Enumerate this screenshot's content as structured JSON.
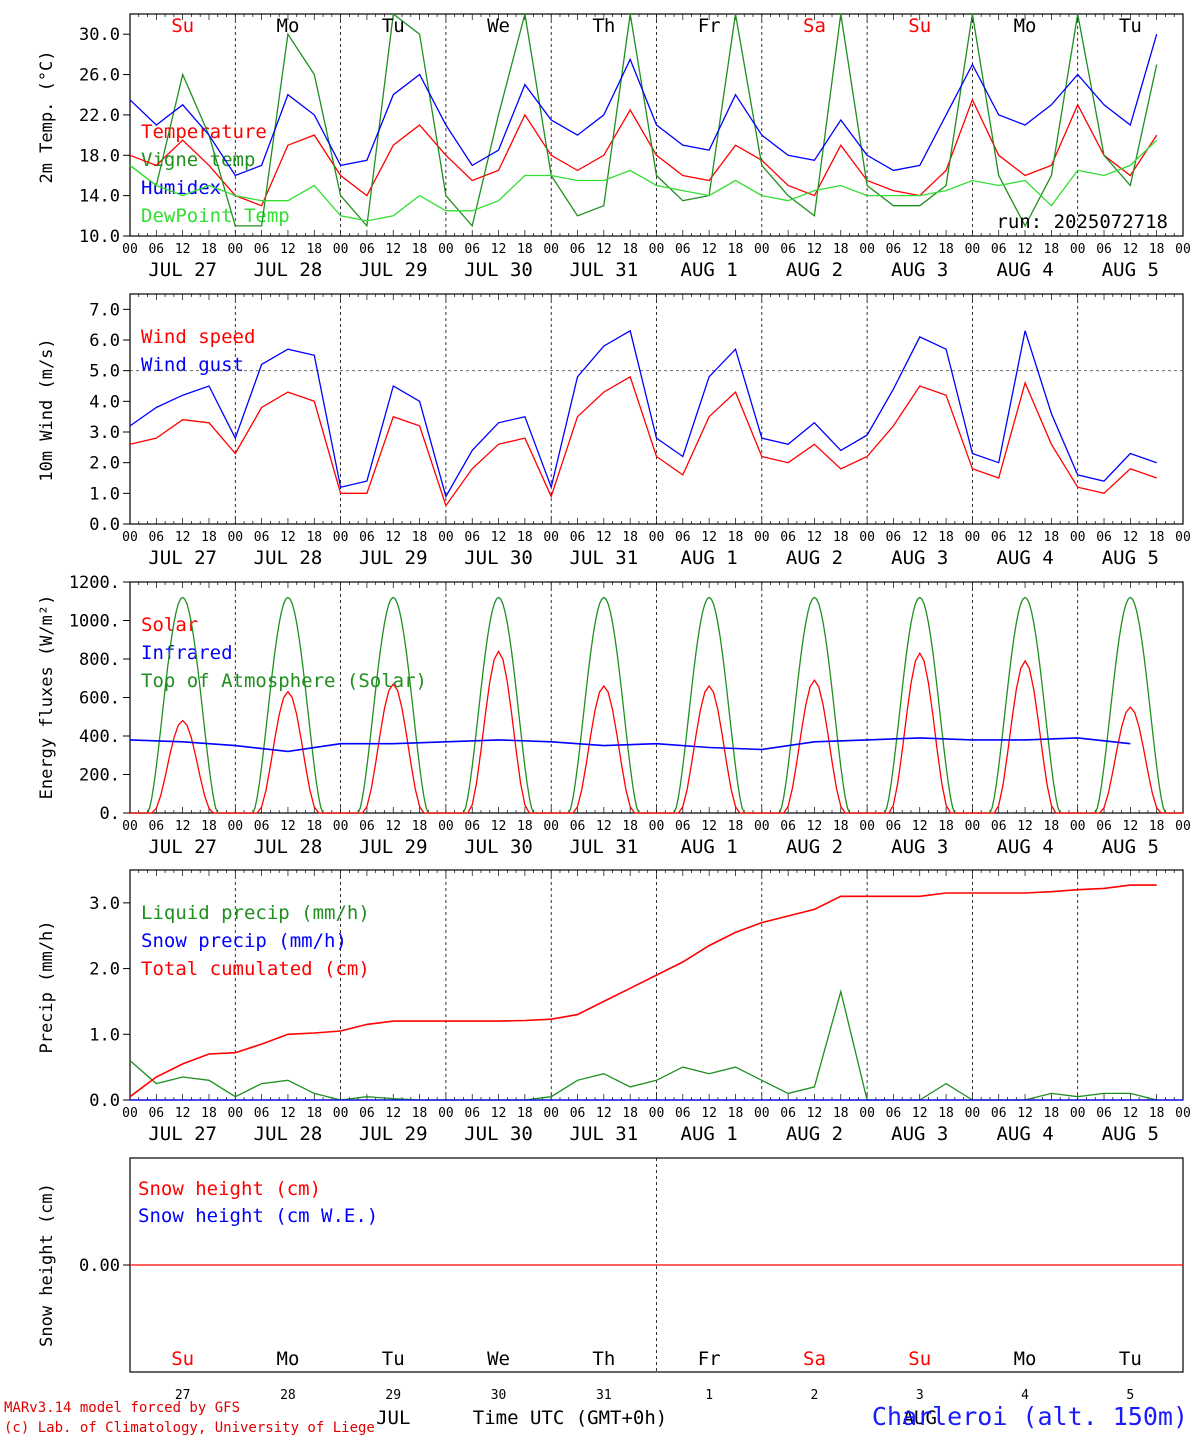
{
  "colors": {
    "red": "#ff0000",
    "darkgreen": "#1f8f1f",
    "blue": "#0000ff",
    "lightgreen": "#33dd33",
    "weekend": "#ff0000",
    "weekday": "#000000"
  },
  "days": [
    "JUL 27",
    "JUL 28",
    "JUL 29",
    "JUL 30",
    "JUL 31",
    "AUG  1",
    "AUG  2",
    "AUG  3",
    "AUG  4",
    "AUG  5"
  ],
  "weekdays": [
    "Su",
    "Mo",
    "Tu",
    "We",
    "Th",
    "Fr",
    "Sa",
    "Su",
    "Mo",
    "Tu"
  ],
  "weekend_flags": [
    true,
    false,
    false,
    false,
    false,
    false,
    true,
    true,
    false,
    false
  ],
  "hour_labels": [
    "00",
    "06",
    "12",
    "18"
  ],
  "run_label": "run: 2025072718",
  "bottom": {
    "day_numbers": [
      "27",
      "28",
      "29",
      "30",
      "31",
      "1",
      "2",
      "3",
      "4",
      "5"
    ],
    "month_jul": "JUL",
    "month_aug": "AUG",
    "axis_title": "Time UTC (GMT+0h)"
  },
  "credits": {
    "line1": "MARv3.14 model forced by GFS",
    "line2": "(c) Lab. of Climatology, University of Liege"
  },
  "station": "Charleroi (alt. 150m)",
  "chart_data": [
    {
      "type": "line",
      "ylabel": "2m Temp. (°C)",
      "ylim": [
        10,
        32
      ],
      "yticks": [
        "10.0",
        "14.0",
        "18.0",
        "22.0",
        "26.0",
        "30.0"
      ],
      "x_hours": [
        0,
        6,
        12,
        18,
        24,
        30,
        36,
        42,
        48,
        54,
        60,
        66,
        72,
        78,
        84,
        90,
        96,
        102,
        108,
        114,
        120,
        126,
        132,
        138,
        144,
        150,
        156,
        162,
        168,
        174,
        180,
        186,
        192,
        198,
        204,
        210,
        216,
        222,
        228,
        234
      ],
      "series": [
        {
          "name": "Temperature",
          "color": "red",
          "values": [
            18,
            17,
            19.5,
            17,
            14,
            13,
            19,
            20,
            16,
            14,
            19,
            21,
            18,
            15.5,
            16.5,
            22,
            18,
            16.5,
            18,
            22.5,
            18,
            16,
            15.5,
            19,
            17.5,
            15,
            14,
            19,
            15.5,
            14.5,
            14,
            16.5,
            23.5,
            18,
            16,
            17,
            23,
            18,
            16,
            20
          ]
        },
        {
          "name": "Vigne temp",
          "color": "darkgreen",
          "values": [
            17,
            15,
            26,
            20,
            11,
            11,
            30,
            26,
            14,
            11,
            32,
            30,
            14,
            11,
            22,
            32,
            16,
            12,
            13,
            32,
            16,
            13.5,
            14,
            32,
            17,
            14,
            12,
            33,
            15,
            13,
            13,
            15,
            33,
            16,
            11,
            16,
            33,
            18,
            15,
            27
          ]
        },
        {
          "name": "Humidex",
          "color": "blue",
          "values": [
            23.5,
            21,
            23,
            20,
            16,
            17,
            24,
            22,
            17,
            17.5,
            24,
            26,
            21,
            17,
            18.5,
            25,
            21.5,
            20,
            22,
            27.5,
            21,
            19,
            18.5,
            24,
            20,
            18,
            17.5,
            21.5,
            18,
            16.5,
            17,
            22,
            27,
            22,
            21,
            23,
            26,
            23,
            21,
            30
          ]
        },
        {
          "name": "DewPoint Temp",
          "color": "lightgreen",
          "values": [
            17,
            15,
            14,
            15,
            14,
            13.5,
            13.5,
            15,
            12,
            11.5,
            12,
            14,
            12.5,
            12.5,
            13.5,
            16,
            16,
            15.5,
            15.5,
            16.5,
            15,
            14.5,
            14,
            15.5,
            14,
            13.5,
            14.5,
            15,
            14,
            14,
            14,
            14.5,
            15.5,
            15,
            15.5,
            13,
            16.5,
            16,
            17,
            19.5
          ]
        }
      ]
    },
    {
      "type": "line",
      "ylabel": "10m Wind (m/s)",
      "ylim": [
        0,
        7.5
      ],
      "yticks": [
        "0.0",
        "1.0",
        "2.0",
        "3.0",
        "4.0",
        "5.0",
        "6.0",
        "7.0"
      ],
      "reference_line": 5.0,
      "x_hours": [
        0,
        6,
        12,
        18,
        24,
        30,
        36,
        42,
        48,
        54,
        60,
        66,
        72,
        78,
        84,
        90,
        96,
        102,
        108,
        114,
        120,
        126,
        132,
        138,
        144,
        150,
        156,
        162,
        168,
        174,
        180,
        186,
        192,
        198,
        204,
        210,
        216,
        222,
        228,
        234
      ],
      "series": [
        {
          "name": "Wind speed",
          "color": "red",
          "values": [
            2.6,
            2.8,
            3.4,
            3.3,
            2.3,
            3.8,
            4.3,
            4.0,
            1.0,
            1.0,
            3.5,
            3.2,
            0.6,
            1.8,
            2.6,
            2.8,
            0.9,
            3.5,
            4.3,
            4.8,
            2.2,
            1.6,
            3.5,
            4.3,
            2.2,
            2.0,
            2.6,
            1.8,
            2.2,
            3.2,
            4.5,
            4.2,
            1.8,
            1.5,
            4.6,
            2.6,
            1.2,
            1.0,
            1.8,
            1.5
          ]
        },
        {
          "name": "Wind gust",
          "color": "blue",
          "values": [
            3.2,
            3.8,
            4.2,
            4.5,
            2.8,
            5.2,
            5.7,
            5.5,
            1.2,
            1.4,
            4.5,
            4.0,
            0.9,
            2.4,
            3.3,
            3.5,
            1.2,
            4.8,
            5.8,
            6.3,
            2.8,
            2.2,
            4.8,
            5.7,
            2.8,
            2.6,
            3.3,
            2.4,
            2.9,
            4.4,
            6.1,
            5.7,
            2.3,
            2.0,
            6.3,
            3.6,
            1.6,
            1.4,
            2.3,
            2.0
          ]
        }
      ]
    },
    {
      "type": "line",
      "ylabel": "Energy fluxes (W/m²)",
      "ylim": [
        0,
        1200
      ],
      "yticks": [
        "0.",
        "200.",
        "400.",
        "600.",
        "800.",
        "1000.",
        "1200."
      ],
      "solar_peaks": [
        480,
        630,
        670,
        840,
        660,
        660,
        690,
        830,
        790,
        550
      ],
      "series": [
        {
          "name": "Solar",
          "color": "red"
        },
        {
          "name": "Infrared",
          "color": "blue",
          "values": [
            380,
            370,
            350,
            320,
            360,
            360,
            370,
            380,
            370,
            350,
            360,
            340,
            330,
            370,
            380,
            390,
            380,
            380,
            390,
            360
          ]
        },
        {
          "name": "Top of Atmosphere (Solar)",
          "color": "darkgreen",
          "peak": 1120
        }
      ]
    },
    {
      "type": "line",
      "ylabel": "Precip (mm/h)",
      "ylim": [
        0,
        3.5
      ],
      "yticks": [
        "0.0",
        "1.0",
        "2.0",
        "3.0"
      ],
      "series": [
        {
          "name": "Liquid precip (mm/h)",
          "color": "darkgreen",
          "values": [
            0.6,
            0.25,
            0.35,
            0.3,
            0.05,
            0.25,
            0.3,
            0.1,
            0.0,
            0.05,
            0.02,
            0.0,
            0.0,
            0.0,
            0.0,
            0.0,
            0.05,
            0.3,
            0.4,
            0.2,
            0.3,
            0.5,
            0.4,
            0.5,
            0.3,
            0.1,
            0.2,
            1.65,
            0.0,
            0.0,
            0.0,
            0.25,
            0.0,
            0.0,
            0.0,
            0.1,
            0.05,
            0.1,
            0.1,
            0.0
          ]
        },
        {
          "name": "Snow precip (mm/h)",
          "color": "blue",
          "values": []
        },
        {
          "name": "Total cumulated (cm)",
          "color": "red",
          "values": [
            0.05,
            0.35,
            0.55,
            0.7,
            0.72,
            0.85,
            1.0,
            1.02,
            1.05,
            1.15,
            1.2,
            1.2,
            1.2,
            1.2,
            1.2,
            1.21,
            1.23,
            1.3,
            1.5,
            1.7,
            1.9,
            2.1,
            2.35,
            2.55,
            2.7,
            2.8,
            2.9,
            3.1,
            3.1,
            3.1,
            3.1,
            3.15,
            3.15,
            3.15,
            3.15,
            3.17,
            3.2,
            3.22,
            3.27,
            3.27
          ]
        }
      ]
    },
    {
      "type": "line",
      "ylabel": "Snow height (cm)",
      "yticks": [
        "0.00"
      ],
      "series": [
        {
          "name": "Snow height (cm)",
          "color": "red",
          "value": 0.0
        },
        {
          "name": "Snow height (cm W.E.)",
          "color": "blue"
        }
      ]
    }
  ]
}
